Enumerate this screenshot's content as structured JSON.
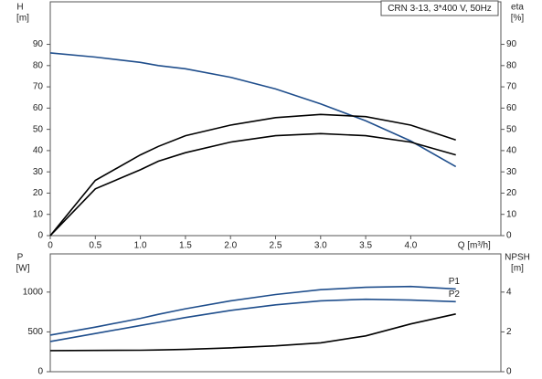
{
  "chart_data": [
    {
      "type": "line",
      "title": "CRN 3-13, 3*400 V, 50Hz",
      "x_label": "Q [m³/h]",
      "y_label": "H",
      "y_unit": "[m]",
      "y2_label": "eta",
      "y2_unit": "[%]",
      "xlim": [
        0,
        5
      ],
      "xticks": [
        0,
        0.5,
        {
          "value": 1,
          "label": "1.0"
        },
        1.5,
        {
          "value": 2,
          "label": "2.0"
        },
        2.5,
        {
          "value": 3,
          "label": "3.0"
        },
        3.5,
        {
          "value": 4,
          "label": "4.0"
        }
      ],
      "ylim": [
        0,
        110
      ],
      "yticks": [
        0,
        10,
        20,
        30,
        40,
        50,
        60,
        70,
        80,
        90
      ],
      "y2lim": [
        0,
        110
      ],
      "y2ticks": [
        0,
        10,
        20,
        30,
        40,
        50,
        60,
        70,
        80,
        90
      ],
      "x": [
        0,
        0.5,
        1.0,
        1.2,
        1.5,
        2.0,
        2.5,
        3.0,
        3.5,
        4.0,
        4.5
      ],
      "series": [
        {
          "color": "#1f4e8c",
          "values": [
            86,
            84,
            81.5,
            80,
            78.5,
            74.5,
            69,
            62,
            54,
            44.5,
            32.5
          ]
        },
        {
          "color": "#000000",
          "axis": "y2",
          "values": [
            0,
            26,
            38,
            42,
            47,
            52,
            55.5,
            57,
            56,
            52,
            45
          ]
        },
        {
          "color": "#000000",
          "axis": "y2",
          "values": [
            0,
            22,
            31,
            35,
            39,
            44,
            47,
            48,
            47,
            44,
            38
          ]
        }
      ]
    },
    {
      "type": "line",
      "y_label": "P",
      "y_unit": "[W]",
      "y2_label": "NPSH",
      "y2_unit": "[m]",
      "xlim": [
        0,
        5
      ],
      "ylim": [
        0,
        1480
      ],
      "yticks": [
        0,
        500,
        1000
      ],
      "y2lim": [
        0,
        5.92
      ],
      "y2ticks": [
        0,
        2,
        4
      ],
      "x": [
        0,
        0.5,
        1.0,
        1.2,
        1.5,
        2.0,
        2.5,
        3.0,
        3.5,
        4.0,
        4.5
      ],
      "series": [
        {
          "name": "P1",
          "color": "#1f4e8c",
          "values": [
            460,
            560,
            670,
            720,
            790,
            890,
            970,
            1030,
            1060,
            1070,
            1040
          ]
        },
        {
          "name": "P2",
          "color": "#1f4e8c",
          "values": [
            380,
            480,
            580,
            620,
            680,
            770,
            840,
            890,
            910,
            900,
            880
          ]
        },
        {
          "color": "#000000",
          "axis": "y2",
          "values": [
            1.06,
            1.07,
            1.08,
            1.09,
            1.12,
            1.2,
            1.3,
            1.45,
            1.8,
            2.4,
            2.9
          ]
        }
      ]
    }
  ]
}
